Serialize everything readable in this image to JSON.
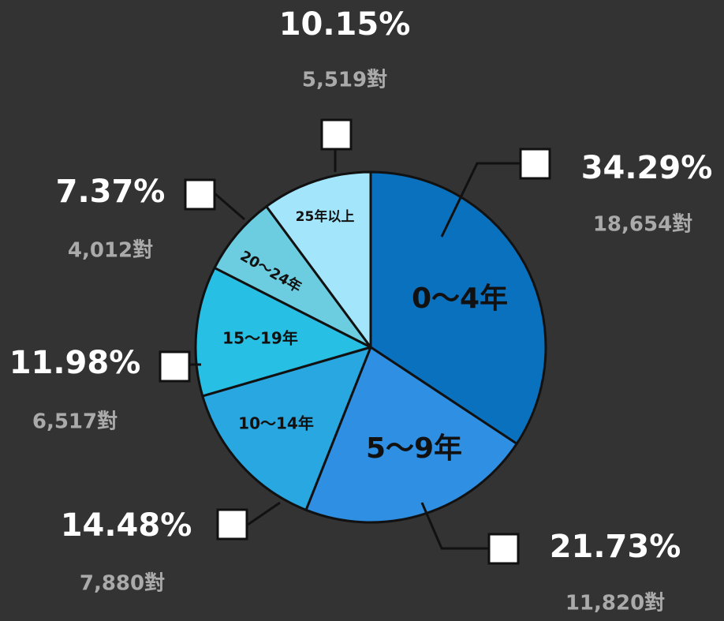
{
  "chart_data": {
    "type": "pie",
    "categories": [
      "0～4年",
      "5～9年",
      "10～14年",
      "15～19年",
      "20～24年",
      "25年以上"
    ],
    "values": [
      34.29,
      21.73,
      14.48,
      11.98,
      7.37,
      10.15
    ],
    "value_labels": [
      "34.29%",
      "21.73%",
      "14.48%",
      "11.98%",
      "7.37%",
      "10.15%"
    ],
    "count_labels": [
      "18,654對",
      "11,820對",
      "7,880對",
      "6,517對",
      "4,012對",
      "5,519對"
    ],
    "colors": [
      "#0a71be",
      "#2f8fe2",
      "#29a7e0",
      "#28bfe4",
      "#6ccde0",
      "#a3e6fc"
    ]
  }
}
